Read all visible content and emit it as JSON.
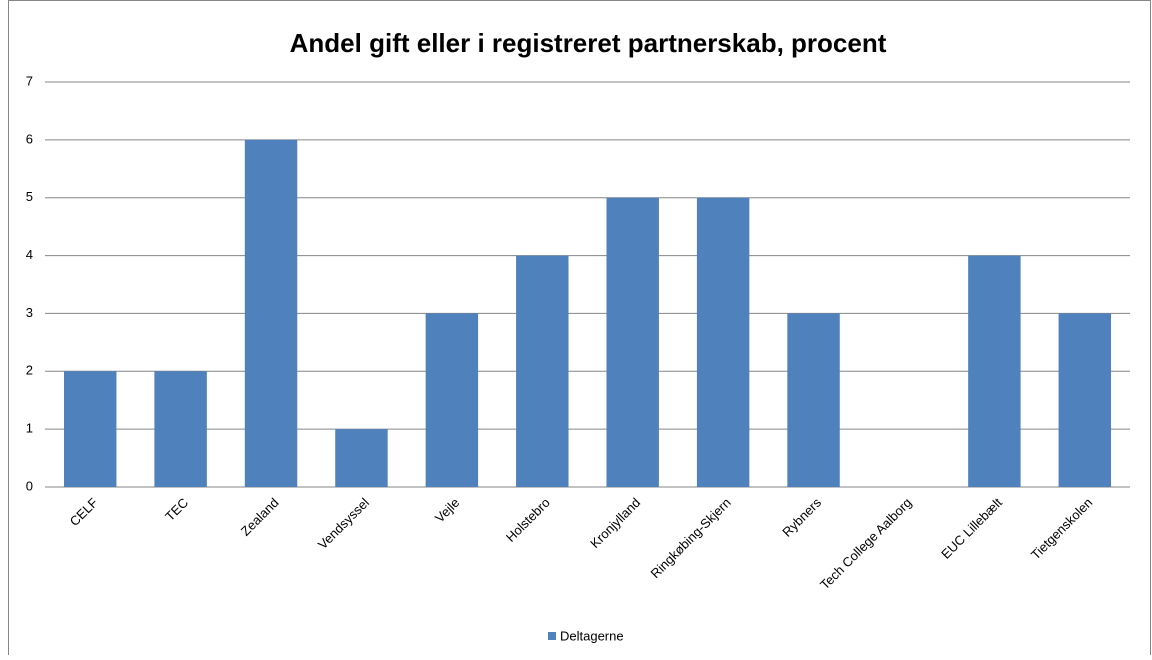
{
  "chart_data": {
    "type": "bar",
    "title": "Andel gift eller i registreret partnerskab, procent",
    "categories": [
      "CELF",
      "TEC",
      "Zealand",
      "Vendsyssel",
      "Vejle",
      "Holstebro",
      "Kronjylland",
      "Ringkøbing-Skjern",
      "Rybners",
      "Tech College Aalborg",
      "EUC Lillebælt",
      "Tietgenskolen"
    ],
    "series": [
      {
        "name": "Deltagerne",
        "color": "#4f81bd",
        "values": [
          2,
          2,
          6,
          1,
          3,
          4,
          5,
          5,
          3,
          0,
          4,
          3
        ]
      }
    ],
    "ylim": [
      0,
      7
    ],
    "yticks": [
      0,
      1,
      2,
      3,
      4,
      5,
      6,
      7
    ],
    "grid": true,
    "legend": "bottom"
  }
}
